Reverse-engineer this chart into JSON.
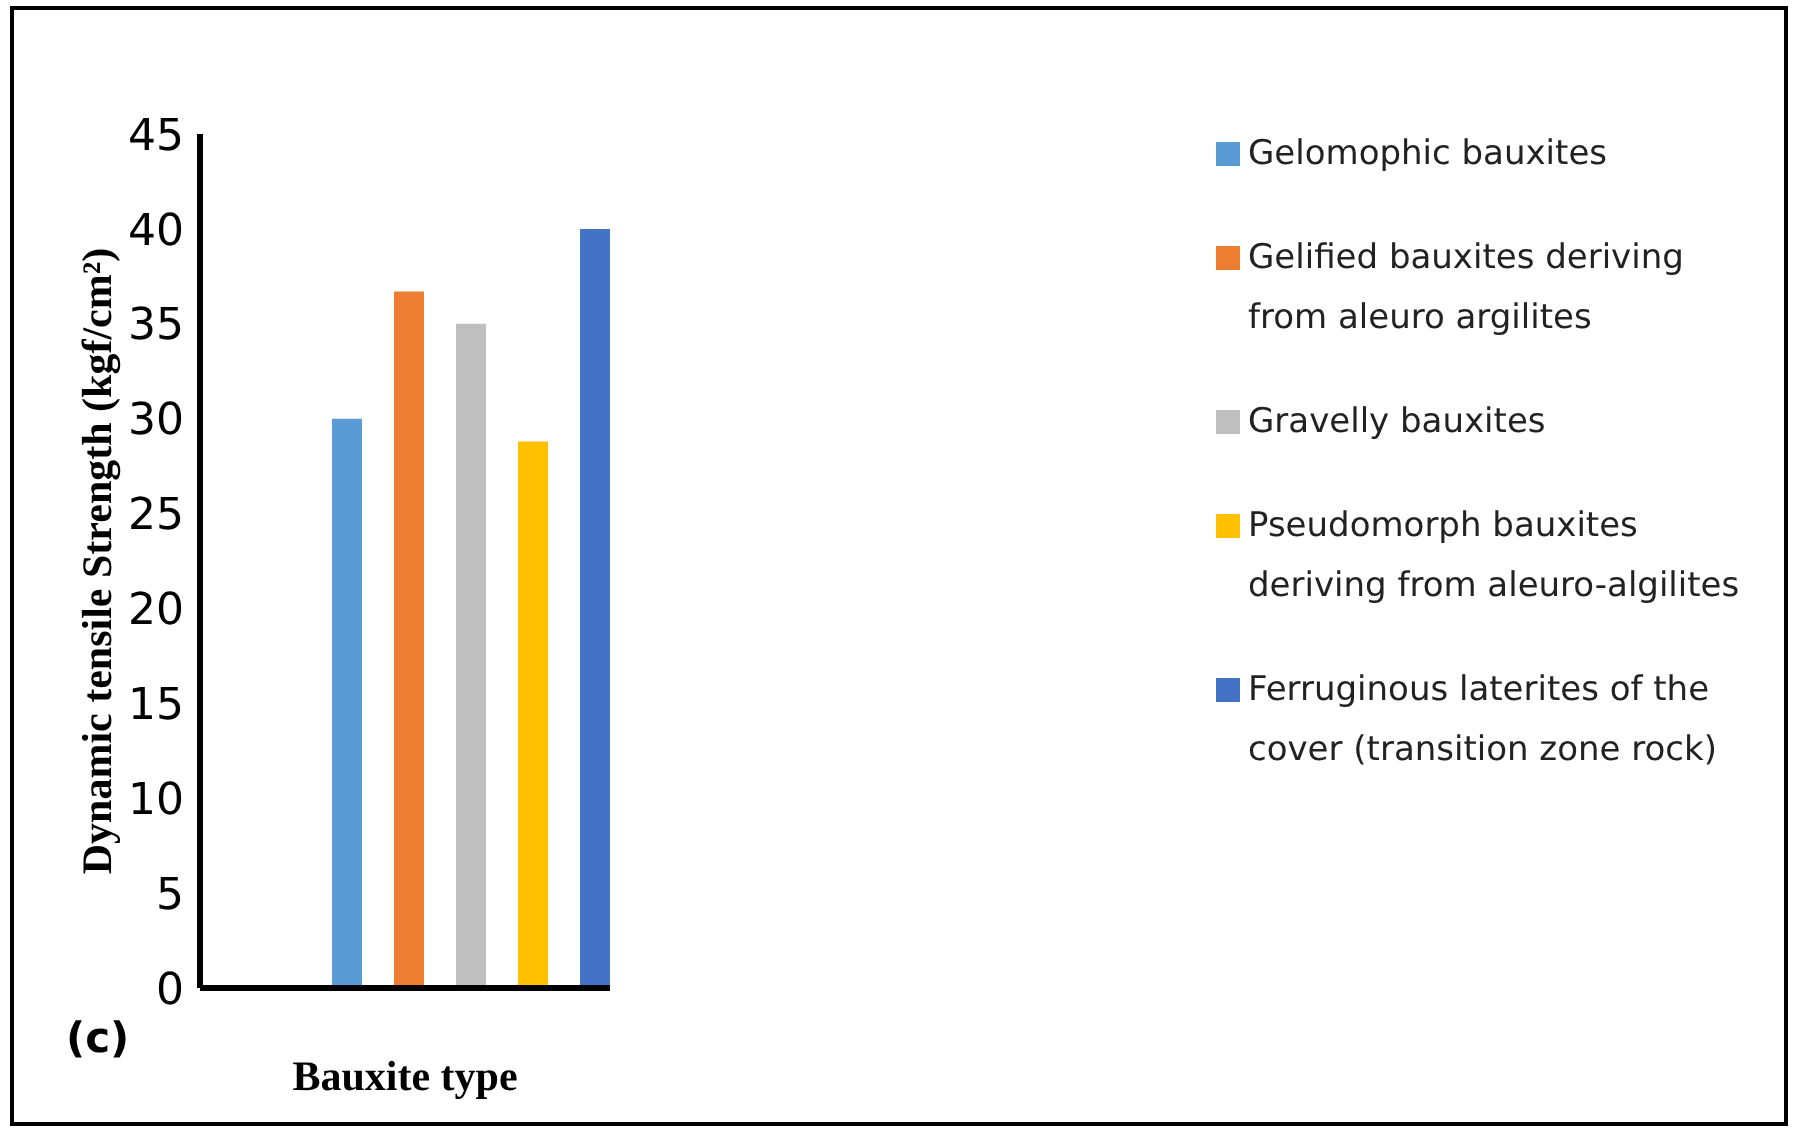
{
  "chart_data": {
    "type": "bar",
    "categories": [
      null
    ],
    "series": [
      {
        "name": "Gelomophic bauxites",
        "color": "#5b9bd5",
        "values": [
          30
        ]
      },
      {
        "name": "Gelified bauxites deriving from aleuro argilites",
        "color": "#ed7d31",
        "values": [
          36.7
        ]
      },
      {
        "name": "Gravelly bauxites",
        "color": "#bfbfbf",
        "values": [
          35
        ]
      },
      {
        "name": "Pseudomorph bauxites deriving from aleuro-algilites",
        "color": "#ffc000",
        "values": [
          28.8
        ]
      },
      {
        "name": "Ferruginous laterites of the cover (transition zone rock)",
        "color": "#4472c4",
        "values": [
          40
        ]
      }
    ],
    "xlabel": "Bauxite type",
    "ylabel": "Dynamic tensile Strength (kgf/cm²)",
    "ylim": [
      0,
      45
    ],
    "yticks": [
      0,
      5,
      10,
      15,
      20,
      25,
      30,
      35,
      40,
      45
    ],
    "tick_labels": "y",
    "legend": "right",
    "grid": false,
    "annotations": [
      "(c)"
    ]
  }
}
